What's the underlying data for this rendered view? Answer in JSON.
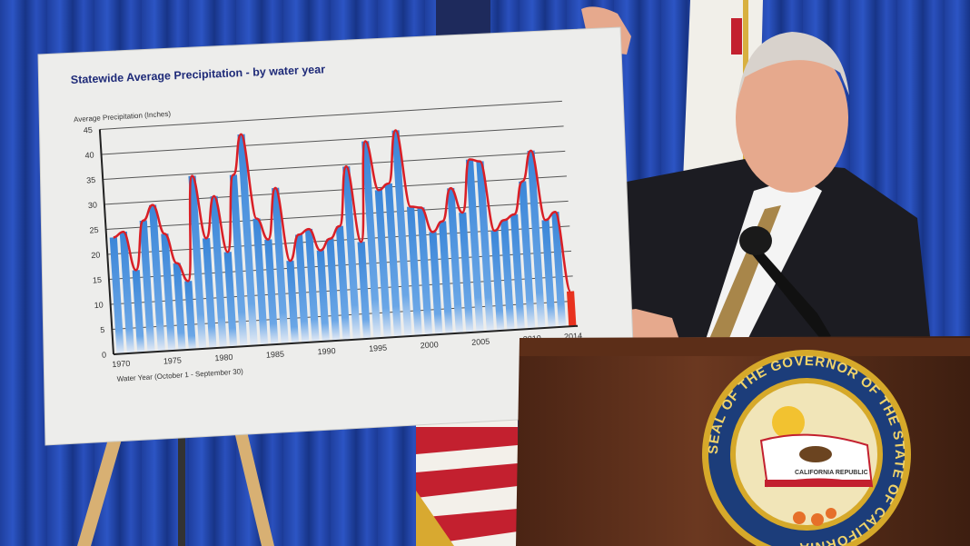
{
  "chart_data": {
    "type": "bar",
    "title": "Statewide Average Precipitation - by water year",
    "ylabel": "Average Precipitation (Inches)",
    "xlabel": "Water Year (October 1 - September 30)",
    "ylim": [
      0,
      45
    ],
    "yticks": [
      "0",
      "5",
      "10",
      "15",
      "20",
      "25",
      "30",
      "35",
      "40",
      "45"
    ],
    "xticks": [
      "1970",
      "1975",
      "1980",
      "1985",
      "1990",
      "1995",
      "2000",
      "2005",
      "2010",
      "2014"
    ],
    "grid": true,
    "x": [
      1970,
      1971,
      1972,
      1973,
      1974,
      1975,
      1976,
      1977,
      1978,
      1979,
      1980,
      1981,
      1982,
      1983,
      1984,
      1985,
      1986,
      1987,
      1988,
      1989,
      1990,
      1991,
      1992,
      1993,
      1994,
      1995,
      1996,
      1997,
      1998,
      1999,
      2000,
      2001,
      2002,
      2003,
      2004,
      2005,
      2006,
      2007,
      2008,
      2009,
      2010,
      2011,
      2012,
      2013,
      2014
    ],
    "values": [
      23.3,
      24.3,
      16.5,
      26.3,
      29.3,
      23.4,
      17.4,
      13.7,
      34.6,
      22.0,
      30.3,
      19.0,
      34.3,
      42.3,
      25.3,
      21.0,
      31.2,
      16.5,
      21.6,
      22.6,
      18.2,
      20.4,
      22.8,
      34.6,
      19.4,
      39.4,
      29.5,
      30.7,
      41.2,
      25.8,
      25.5,
      20.5,
      22.5,
      29.0,
      24.0,
      34.5,
      34.0,
      20.0,
      22.0,
      23.0,
      29.5,
      35.5,
      21.5,
      23.0,
      7.0
    ],
    "bar_color": "#3b86d8",
    "highlight_bar_color": "#e8321e",
    "trend_line_color": "#d91f26",
    "title_color": "#1e2a78"
  },
  "seal": {
    "ring_text": "SEAL OF THE GOVERNOR OF THE STATE OF CALIFORNIA",
    "flag_text": "CALIFORNIA REPUBLIC"
  }
}
